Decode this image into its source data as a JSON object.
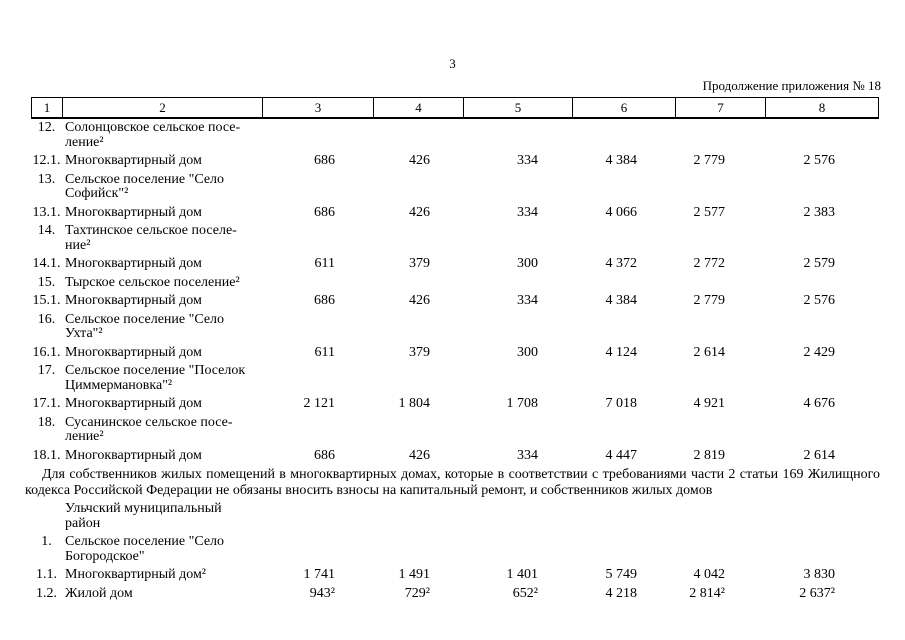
{
  "page": {
    "number": "3",
    "continuation": "Продолжение приложения № 18"
  },
  "table": {
    "header_cols": [
      "1",
      "2",
      "3",
      "4",
      "5",
      "6",
      "7",
      "8"
    ],
    "section1_rows": [
      {
        "num": "12.",
        "name": "Солонцовское сельское посе-\nление²",
        "values": [
          "",
          "",
          "",
          "",
          "",
          ""
        ]
      },
      {
        "num": "12.1.",
        "name": "Многоквартирный дом",
        "values": [
          "686",
          "426",
          "334",
          "4 384",
          "2 779",
          "2 576"
        ]
      },
      {
        "num": "13.",
        "name": "Сельское поселение \"Село\nСофийск\"²",
        "values": [
          "",
          "",
          "",
          "",
          "",
          ""
        ]
      },
      {
        "num": "13.1.",
        "name": "Многоквартирный дом",
        "values": [
          "686",
          "426",
          "334",
          "4 066",
          "2 577",
          "2 383"
        ]
      },
      {
        "num": "14.",
        "name": "Тахтинское сельское поселе-\nние²",
        "values": [
          "",
          "",
          "",
          "",
          "",
          ""
        ]
      },
      {
        "num": "14.1.",
        "name": "Многоквартирный дом",
        "values": [
          "611",
          "379",
          "300",
          "4 372",
          "2 772",
          "2 579"
        ]
      },
      {
        "num": "15.",
        "name": "Тырское сельское поселение²",
        "values": [
          "",
          "",
          "",
          "",
          "",
          ""
        ]
      },
      {
        "num": "15.1.",
        "name": "Многоквартирный дом",
        "values": [
          "686",
          "426",
          "334",
          "4 384",
          "2 779",
          "2 576"
        ]
      },
      {
        "num": "16.",
        "name": "Сельское поселение \"Село\nУхта\"²",
        "values": [
          "",
          "",
          "",
          "",
          "",
          ""
        ]
      },
      {
        "num": "16.1.",
        "name": "Многоквартирный дом",
        "values": [
          "611",
          "379",
          "300",
          "4 124",
          "2 614",
          "2 429"
        ]
      },
      {
        "num": "17.",
        "name": "Сельское поселение \"Поселок\nЦиммермановка\"²",
        "values": [
          "",
          "",
          "",
          "",
          "",
          ""
        ]
      },
      {
        "num": "17.1.",
        "name": "Многоквартирный дом",
        "values": [
          "2 121",
          "1 804",
          "1 708",
          "7 018",
          "4 921",
          "4 676"
        ]
      },
      {
        "num": "18.",
        "name": "Сусанинское сельское посе-\nление²",
        "values": [
          "",
          "",
          "",
          "",
          "",
          ""
        ]
      },
      {
        "num": "18.1.",
        "name": "Многоквартирный дом",
        "values": [
          "686",
          "426",
          "334",
          "4 447",
          "2 819",
          "2 614"
        ]
      }
    ],
    "note": "Для собственников жилых помещений в многоквартирных домах, которые в соответствии с требованиями части 2 статьи 169 Жилищного кодекса Российской Федерации не обязаны вносить взносы на капитальный ремонт, и собственников жилых домов",
    "section2_heading": "Ульчский муниципальный\nрайон",
    "section2_rows": [
      {
        "num": "1.",
        "name": "Сельское поселение \"Село\nБогородское\"",
        "values": [
          "",
          "",
          "",
          "",
          "",
          ""
        ]
      },
      {
        "num": "1.1.",
        "name": "Многоквартирный дом²",
        "values": [
          "1 741",
          "1 491",
          "1 401",
          "5 749",
          "4 042",
          "3 830"
        ]
      },
      {
        "num": "1.2.",
        "name": "Жилой дом",
        "values": [
          "943²",
          "729²",
          "652²",
          "4 218",
          "2 814²",
          "2 637²"
        ]
      }
    ]
  }
}
